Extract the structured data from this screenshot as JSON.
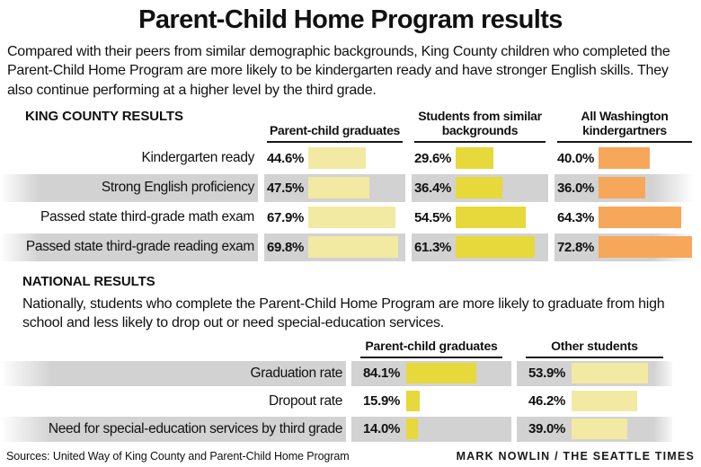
{
  "title": "Parent-Child Home Program results",
  "intro": "Compared with their peers from similar demographic backgrounds, King County children who completed the Parent-Child Home Program are more likely to be kindergarten ready and have stronger English skills. They also continue performing at a higher level by the third grade.",
  "national_intro": "Nationally, students who complete the Parent-Child Home Program are more likely to graduate from high school and less likely to drop out or need special-education services.",
  "footer": {
    "sources": "Sources: United Way of King County and Parent-Child Home Program",
    "credit": "MARK NOWLIN / THE SEATTLE TIMES"
  },
  "colors": {
    "band_gray": "#D2D2D2",
    "rule_black": "#161616",
    "pale_yellow": "#F2E9A2",
    "yellow": "#E7D83C",
    "orange": "#F6A75A"
  },
  "chart_data": [
    {
      "type": "bar",
      "title": "KING COUNTY RESULTS",
      "orientation": "horizontal",
      "unit": "%",
      "value_labels": true,
      "grid": false,
      "categories": [
        "Kindergarten ready",
        "Strong English proficiency",
        "Passed state third-grade math exam",
        "Passed state third-grade reading exam"
      ],
      "series": [
        {
          "name": "Parent-child graduates",
          "color": "#F2E9A2",
          "values": [
            44.6,
            47.5,
            67.9,
            69.8
          ]
        },
        {
          "name": "Students from similar backgrounds",
          "color": "#E7D83C",
          "values": [
            29.6,
            36.4,
            54.5,
            61.3
          ]
        },
        {
          "name": "All Washington kindergartners",
          "color": "#F6A75A",
          "values": [
            40.0,
            36.0,
            64.3,
            72.8
          ]
        }
      ]
    },
    {
      "type": "bar",
      "title": "NATIONAL RESULTS",
      "orientation": "horizontal",
      "unit": "%",
      "value_labels": true,
      "grid": false,
      "categories": [
        "Graduation rate",
        "Dropout rate",
        "Need for special-education services by third grade"
      ],
      "series": [
        {
          "name": "Parent-child graduates",
          "color": "#E7D83C",
          "values": [
            84.1,
            15.9,
            14.0
          ]
        },
        {
          "name": "Other students",
          "color": "#F2E9A2",
          "values": [
            53.9,
            46.2,
            39.0
          ]
        }
      ]
    }
  ]
}
